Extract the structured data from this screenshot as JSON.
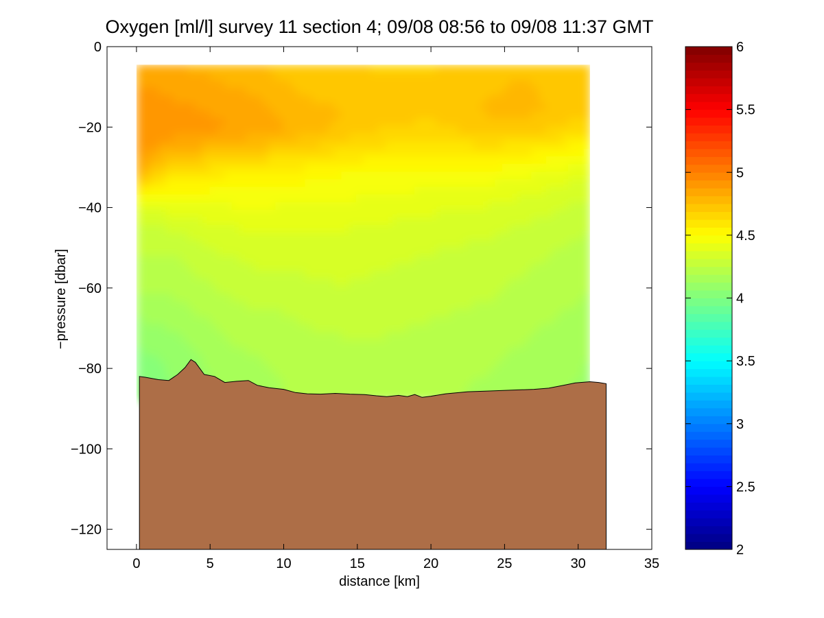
{
  "chart_data": {
    "type": "heatmap",
    "title": "Oxygen [ml/l] survey 11 section 4; 09/08 08:56 to 09/08 11:37 GMT",
    "xlabel": "distance [km]",
    "ylabel": "−pressure [dbar]",
    "xlim": [
      -2,
      35
    ],
    "ylim": [
      -125,
      0
    ],
    "xticks": [
      0,
      5,
      10,
      15,
      20,
      25,
      30,
      35
    ],
    "yticks": [
      0,
      -20,
      -40,
      -60,
      -80,
      -100,
      -120
    ],
    "xtick_labels": [
      "0",
      "5",
      "10",
      "15",
      "20",
      "25",
      "30",
      "35"
    ],
    "ytick_labels": [
      "0",
      "−20",
      "−40",
      "−60",
      "−80",
      "−100",
      "−120"
    ],
    "colormap": "jet",
    "colorbar": {
      "clim": [
        2,
        6
      ],
      "ticks": [
        2,
        2.5,
        3,
        3.5,
        4,
        4.5,
        5,
        5.5,
        6
      ],
      "tick_labels": [
        "2",
        "2.5",
        "3",
        "3.5",
        "4",
        "4.5",
        "5",
        "5.5",
        "6"
      ]
    },
    "data_extent": {
      "x": [
        0,
        30.8
      ],
      "top_pressure": -4.5
    },
    "oxygen_profiles": {
      "depth": [
        -4.5,
        -10,
        -16,
        -20,
        -24,
        -28,
        -32,
        -36,
        -40,
        -46,
        -52,
        -60,
        -68,
        -76,
        -84
      ],
      "by_distance": [
        {
          "x": 0,
          "values": [
            4.85,
            4.88,
            4.92,
            4.93,
            4.93,
            4.9,
            4.78,
            4.58,
            4.4,
            4.3,
            4.25,
            4.2,
            4.12,
            4.05,
            4.0
          ]
        },
        {
          "x": 2,
          "values": [
            4.82,
            4.86,
            4.9,
            4.92,
            4.86,
            4.74,
            4.62,
            4.5,
            4.4,
            4.3,
            4.24,
            4.2,
            4.14,
            4.08,
            4.05
          ]
        },
        {
          "x": 4,
          "values": [
            4.8,
            4.84,
            4.88,
            4.9,
            4.84,
            4.7,
            4.6,
            4.5,
            4.42,
            4.33,
            4.28,
            4.23,
            4.17,
            4.12,
            4.1
          ]
        },
        {
          "x": 6,
          "values": [
            4.78,
            4.82,
            4.86,
            4.88,
            4.8,
            4.66,
            4.56,
            4.49,
            4.43,
            4.36,
            4.31,
            4.26,
            4.21,
            4.17,
            4.14
          ]
        },
        {
          "x": 8,
          "values": [
            4.76,
            4.8,
            4.84,
            4.86,
            4.78,
            4.64,
            4.54,
            4.49,
            4.44,
            4.38,
            4.33,
            4.28,
            4.23,
            4.19,
            4.16
          ]
        },
        {
          "x": 10,
          "values": [
            4.72,
            4.76,
            4.8,
            4.82,
            4.74,
            4.62,
            4.53,
            4.48,
            4.43,
            4.37,
            4.33,
            4.29,
            4.24,
            4.21,
            4.19
          ]
        },
        {
          "x": 12,
          "values": [
            4.7,
            4.73,
            4.77,
            4.78,
            4.71,
            4.6,
            4.52,
            4.47,
            4.42,
            4.37,
            4.34,
            4.3,
            4.26,
            4.22,
            4.2
          ]
        },
        {
          "x": 14,
          "values": [
            4.7,
            4.72,
            4.75,
            4.74,
            4.67,
            4.58,
            4.5,
            4.46,
            4.42,
            4.37,
            4.34,
            4.31,
            4.27,
            4.23,
            4.21
          ]
        },
        {
          "x": 16,
          "values": [
            4.68,
            4.71,
            4.73,
            4.7,
            4.64,
            4.56,
            4.49,
            4.45,
            4.41,
            4.36,
            4.33,
            4.3,
            4.27,
            4.24,
            4.22
          ]
        },
        {
          "x": 18,
          "values": [
            4.68,
            4.7,
            4.72,
            4.68,
            4.62,
            4.55,
            4.48,
            4.44,
            4.4,
            4.35,
            4.32,
            4.29,
            4.26,
            4.23,
            4.21
          ]
        },
        {
          "x": 20,
          "values": [
            4.68,
            4.7,
            4.71,
            4.67,
            4.61,
            4.54,
            4.47,
            4.43,
            4.39,
            4.34,
            4.31,
            4.28,
            4.25,
            4.22,
            4.2
          ]
        },
        {
          "x": 22,
          "values": [
            4.7,
            4.72,
            4.74,
            4.7,
            4.63,
            4.55,
            4.48,
            4.42,
            4.38,
            4.33,
            4.3,
            4.27,
            4.24,
            4.21,
            4.19
          ]
        },
        {
          "x": 24,
          "values": [
            4.72,
            4.74,
            4.76,
            4.72,
            4.64,
            4.55,
            4.47,
            4.41,
            4.37,
            4.32,
            4.29,
            4.26,
            4.23,
            4.2,
            4.18
          ]
        },
        {
          "x": 26,
          "values": [
            4.74,
            4.76,
            4.77,
            4.72,
            4.63,
            4.53,
            4.45,
            4.39,
            4.35,
            4.3,
            4.27,
            4.24,
            4.21,
            4.18,
            4.16
          ]
        },
        {
          "x": 28,
          "values": [
            4.72,
            4.74,
            4.75,
            4.7,
            4.6,
            4.5,
            4.42,
            4.37,
            4.33,
            4.28,
            4.25,
            4.22,
            4.19,
            4.16,
            4.14
          ]
        },
        {
          "x": 30,
          "values": [
            4.7,
            4.72,
            4.72,
            4.66,
            4.56,
            4.46,
            4.39,
            4.34,
            4.3,
            4.26,
            4.23,
            4.2,
            4.17,
            4.14,
            4.12
          ]
        },
        {
          "x": 30.8,
          "values": [
            4.7,
            4.71,
            4.71,
            4.64,
            4.54,
            4.44,
            4.37,
            4.33,
            4.29,
            4.25,
            4.22,
            4.19,
            4.16,
            4.13,
            4.1
          ]
        }
      ]
    },
    "bottom_profile": {
      "color": "#AD6E47",
      "x": [
        0.2,
        0.6,
        1.5,
        2.2,
        2.8,
        3.3,
        3.7,
        4.0,
        4.6,
        5.3,
        6.0,
        6.8,
        7.6,
        8.2,
        9.0,
        10.0,
        10.8,
        11.6,
        12.5,
        13.5,
        14.5,
        15.5,
        16.3,
        17.0,
        17.8,
        18.4,
        18.9,
        19.4,
        20.0,
        21.0,
        22.5,
        24.0,
        25.5,
        27.0,
        28.0,
        29.0,
        29.8,
        30.8,
        31.4,
        31.9
      ],
      "y": [
        -82.0,
        -82.2,
        -82.8,
        -83.0,
        -81.5,
        -79.8,
        -77.8,
        -78.5,
        -81.5,
        -82.0,
        -83.5,
        -83.2,
        -83.0,
        -84.2,
        -84.8,
        -85.2,
        -86.0,
        -86.3,
        -86.4,
        -86.2,
        -86.4,
        -86.5,
        -86.8,
        -87.0,
        -86.7,
        -87.0,
        -86.5,
        -87.2,
        -86.9,
        -86.3,
        -85.8,
        -85.6,
        -85.4,
        -85.2,
        -84.9,
        -84.2,
        -83.6,
        -83.3,
        -83.5,
        -83.8
      ]
    }
  }
}
